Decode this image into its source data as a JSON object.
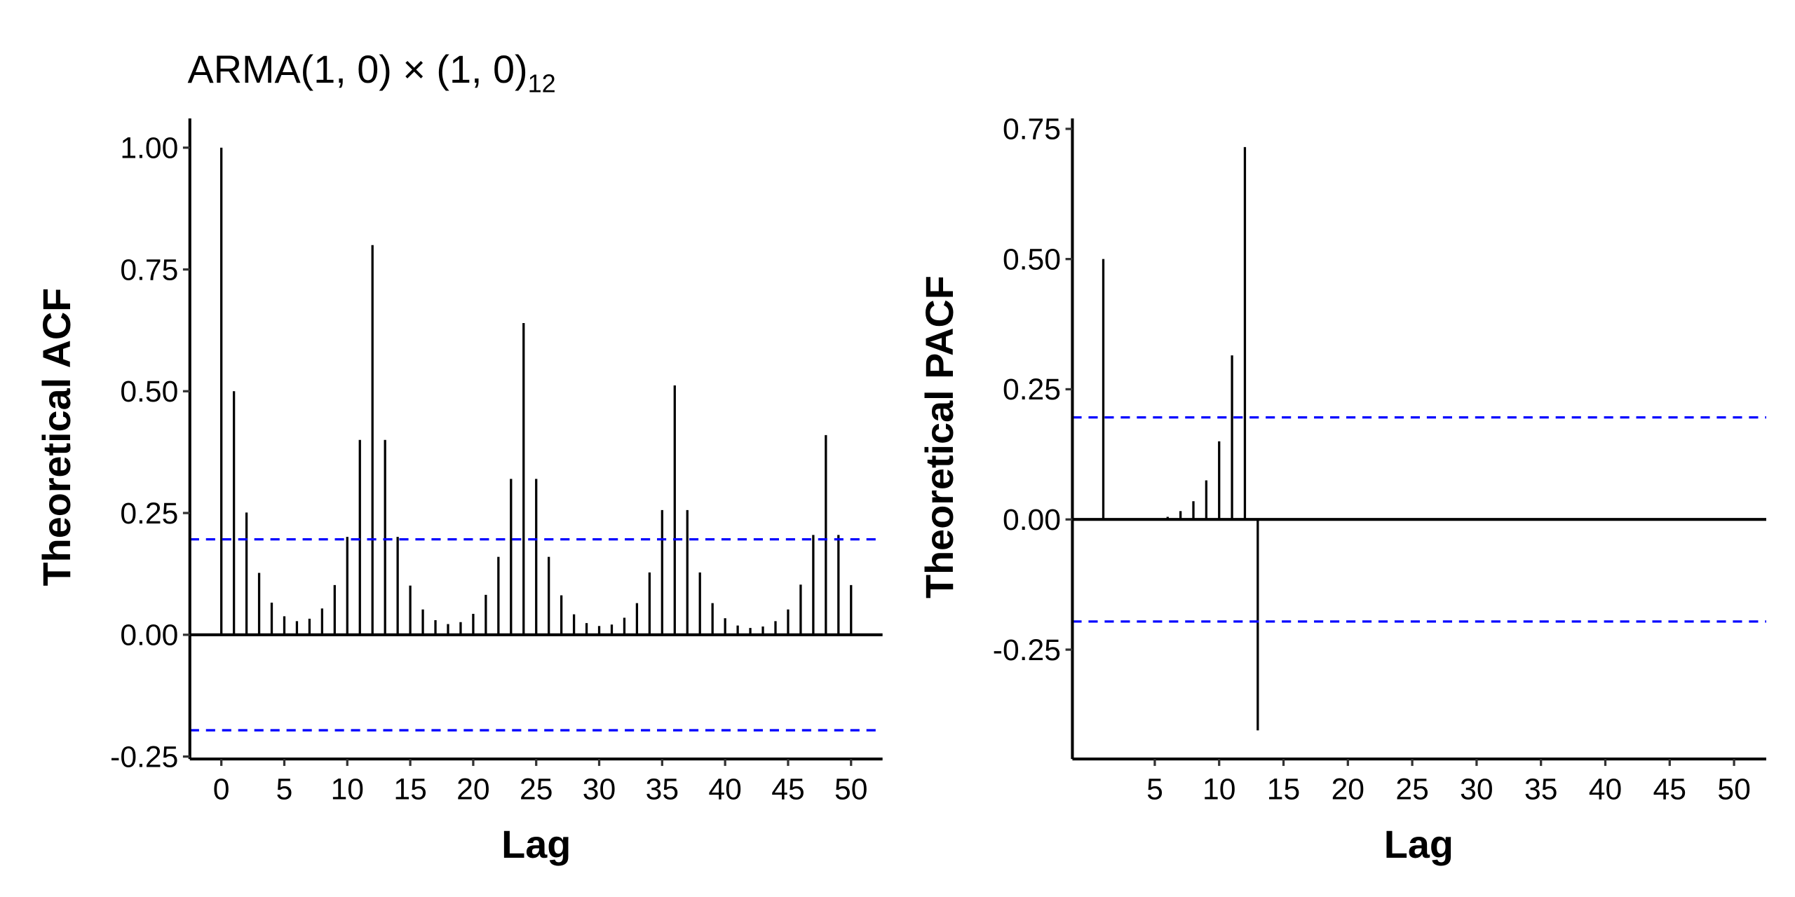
{
  "chart_data": [
    {
      "type": "bar",
      "title": "ARMA(1, 0) × (1, 0)",
      "title_subscript": "12",
      "xlabel": "Lag",
      "ylabel": "Theoretical ACF",
      "xlim": [
        -2.5,
        52.5
      ],
      "ylim": [
        -0.255,
        1.06
      ],
      "xticks": [
        0,
        5,
        10,
        15,
        20,
        25,
        30,
        35,
        40,
        45,
        50
      ],
      "yticks": [
        -0.25,
        0,
        0.25,
        0.5,
        0.75,
        1
      ],
      "ytick_labels": [
        "-0.25",
        "0.00",
        "0.25",
        "0.50",
        "0.75",
        "1.00"
      ],
      "confidence_bound": 0.196,
      "bound_color": "#0000ff",
      "bar_color": "#000000",
      "x": [
        0,
        1,
        2,
        3,
        4,
        5,
        6,
        7,
        8,
        9,
        10,
        11,
        12,
        13,
        14,
        15,
        16,
        17,
        18,
        19,
        20,
        21,
        22,
        23,
        24,
        25,
        26,
        27,
        28,
        29,
        30,
        31,
        32,
        33,
        34,
        35,
        36,
        37,
        38,
        39,
        40,
        41,
        42,
        43,
        44,
        45,
        46,
        47,
        48,
        49,
        50
      ],
      "values": [
        1.0,
        0.5,
        0.251,
        0.127,
        0.066,
        0.038,
        0.028,
        0.033,
        0.054,
        0.102,
        0.201,
        0.4,
        0.8,
        0.4,
        0.201,
        0.101,
        0.052,
        0.03,
        0.022,
        0.026,
        0.043,
        0.082,
        0.16,
        0.32,
        0.64,
        0.32,
        0.16,
        0.081,
        0.042,
        0.024,
        0.018,
        0.021,
        0.035,
        0.065,
        0.128,
        0.256,
        0.512,
        0.256,
        0.128,
        0.065,
        0.034,
        0.019,
        0.014,
        0.017,
        0.028,
        0.052,
        0.103,
        0.205,
        0.41,
        0.205,
        0.102
      ]
    },
    {
      "type": "bar",
      "xlabel": "Lag",
      "ylabel": "Theoretical PACF",
      "xlim": [
        -1.4,
        52.5
      ],
      "ylim": [
        -0.46,
        0.77
      ],
      "xticks": [
        5,
        10,
        15,
        20,
        25,
        30,
        35,
        40,
        45,
        50
      ],
      "yticks": [
        -0.25,
        0,
        0.25,
        0.5,
        0.75
      ],
      "ytick_labels": [
        "-0.25",
        "0.00",
        "0.25",
        "0.50",
        "0.75"
      ],
      "confidence_bound": 0.196,
      "bound_color": "#0000ff",
      "bar_color": "#000000",
      "x": [
        1,
        2,
        3,
        4,
        5,
        6,
        7,
        8,
        9,
        10,
        11,
        12,
        13,
        14,
        15,
        16,
        17,
        18,
        19,
        20,
        21,
        22,
        23,
        24,
        25,
        26,
        27,
        28,
        29,
        30,
        31,
        32,
        33,
        34,
        35,
        36,
        37,
        38,
        39,
        40,
        41,
        42,
        43,
        44,
        45,
        46,
        47,
        48,
        49,
        50
      ],
      "values": [
        0.5,
        0,
        0,
        0,
        0.002,
        0.005,
        0.016,
        0.035,
        0.075,
        0.15,
        0.315,
        0.715,
        -0.405,
        0,
        0,
        0,
        0,
        0,
        0,
        0,
        0,
        0,
        0,
        0,
        0,
        0,
        0,
        0,
        0,
        0,
        0,
        0,
        0,
        0,
        0,
        0,
        0,
        0,
        0,
        0,
        0,
        0,
        0,
        0,
        0,
        0,
        0,
        0,
        0,
        0
      ]
    }
  ]
}
